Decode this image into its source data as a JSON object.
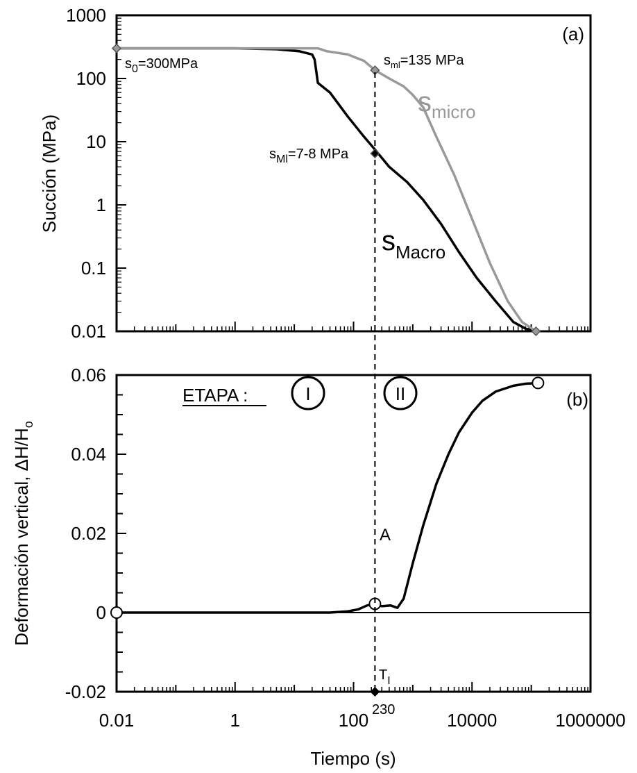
{
  "chart_data": [
    {
      "id": "a",
      "type": "line",
      "panel_label": "(a)",
      "ylabel": "Succión (MPa)",
      "xscale": "log",
      "yscale": "log",
      "xlim": [
        0.01,
        1000000
      ],
      "ylim": [
        0.01,
        1000
      ],
      "ytick_labels": [
        "1000",
        "100",
        "10",
        "1",
        "0.1",
        "0.01"
      ],
      "ytick_values": [
        1000,
        100,
        10,
        1,
        0.1,
        0.01
      ],
      "grid": false,
      "colors": {
        "macro": "#000000",
        "micro": "#999999"
      },
      "series": [
        {
          "name": "s_Macro",
          "label_main": "s",
          "label_sub": "Macro",
          "color": "#000000",
          "x": [
            0.01,
            1,
            5,
            12,
            20,
            22,
            25,
            40,
            80,
            150,
            230,
            400,
            800,
            1500,
            3000,
            6000,
            12000,
            25000,
            50000,
            80000,
            120000
          ],
          "y": [
            300,
            300,
            290,
            270,
            240,
            200,
            85,
            60,
            25,
            12,
            7.5,
            4,
            2.3,
            1.2,
            0.5,
            0.18,
            0.07,
            0.03,
            0.014,
            0.011,
            0.01
          ]
        },
        {
          "name": "s_micro",
          "label_main": "s",
          "label_sub": "micro",
          "color": "#999999",
          "x": [
            0.01,
            1,
            10,
            25,
            35,
            80,
            150,
            230,
            400,
            700,
            1000,
            1500,
            2500,
            5000,
            10000,
            20000,
            40000,
            70000,
            120000
          ],
          "y": [
            300,
            300,
            300,
            300,
            270,
            240,
            190,
            135,
            100,
            75,
            55,
            35,
            12,
            3,
            0.6,
            0.12,
            0.03,
            0.014,
            0.01
          ]
        }
      ],
      "markers": [
        {
          "x": 0.01,
          "y": 300,
          "shape": "diamond",
          "color": "#999999"
        },
        {
          "x": 230,
          "y": 135,
          "shape": "diamond",
          "color": "#999999"
        },
        {
          "x": 230,
          "y": 6.5,
          "shape": "diamond",
          "color": "#000000"
        },
        {
          "x": 120000,
          "y": 0.01,
          "shape": "diamond",
          "color": "#999999"
        }
      ],
      "annotations": {
        "s0": {
          "main": "s",
          "sub": "0",
          "rest": "=300MPa"
        },
        "sml": {
          "main": "s",
          "sub": "ml",
          "rest": "=135 MPa"
        },
        "sMl": {
          "main": "s",
          "sub": "Ml",
          "rest": "=7-8 MPa"
        }
      }
    },
    {
      "id": "b",
      "type": "line",
      "panel_label": "(b)",
      "ylabel_main": "Deformación vertical, ΔH/H",
      "ylabel_sub": "o",
      "xlabel": "Tiempo (s)",
      "xscale": "log",
      "xlim": [
        0.01,
        1000000
      ],
      "ylim": [
        -0.02,
        0.06
      ],
      "ytick_labels": [
        "0.06",
        "0.04",
        "0.02",
        "0",
        "-0.02"
      ],
      "ytick_values": [
        0.06,
        0.04,
        0.02,
        0,
        -0.02
      ],
      "xtick_labels": [
        "0.01",
        "1",
        "100",
        "10000",
        "1000000"
      ],
      "xtick_values": [
        0.01,
        1,
        100,
        10000,
        1000000
      ],
      "grid": false,
      "series": [
        {
          "name": "deformation",
          "color": "#000000",
          "x": [
            0.01,
            10,
            40,
            80,
            120,
            170,
            230,
            300,
            420,
            550,
            700,
            1000,
            1500,
            2500,
            4000,
            6000,
            10000,
            15000,
            25000,
            50000,
            80000,
            130000
          ],
          "y": [
            0,
            0,
            0,
            0.0003,
            0.0008,
            0.0018,
            0.0022,
            0.0016,
            0.0018,
            0.0012,
            0.0035,
            0.0125,
            0.022,
            0.0325,
            0.04,
            0.0455,
            0.0505,
            0.0535,
            0.0558,
            0.0573,
            0.0578,
            0.058
          ]
        }
      ],
      "markers": [
        {
          "x": 0.01,
          "y": 0,
          "shape": "circle"
        },
        {
          "x": 230,
          "y": 0.0022,
          "shape": "circle",
          "label": "A"
        },
        {
          "x": 130000,
          "y": 0.058,
          "shape": "circle"
        },
        {
          "x": 230,
          "y": -0.02,
          "shape": "diamond"
        }
      ],
      "stage_label": "ETAPA :",
      "stages": [
        "I",
        "II"
      ],
      "threshold": {
        "x": 230,
        "label_main": "T",
        "label_sub": "I",
        "value_label": "230"
      }
    }
  ]
}
